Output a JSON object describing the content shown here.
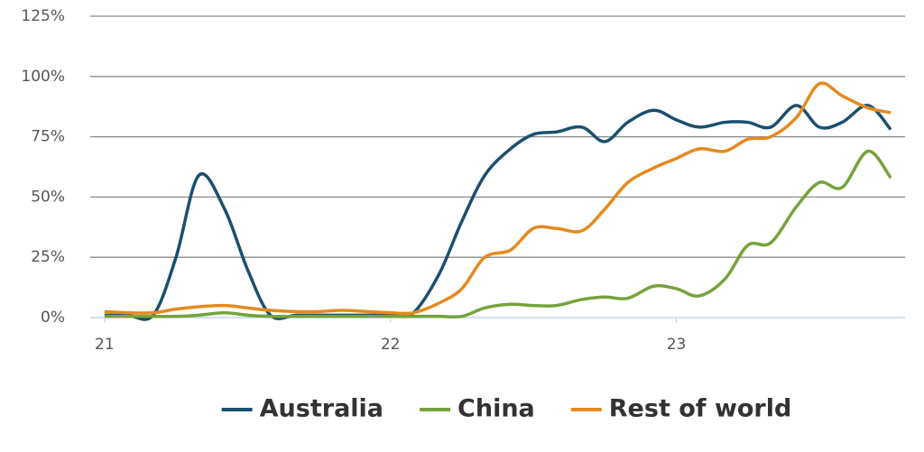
{
  "chart_data": {
    "type": "line",
    "x": [
      21,
      21.08,
      21.17,
      21.25,
      21.33,
      21.42,
      21.5,
      21.58,
      21.67,
      21.75,
      21.83,
      21.92,
      22,
      22.08,
      22.17,
      22.25,
      22.33,
      22.42,
      22.5,
      22.58,
      22.67,
      22.75,
      22.83,
      22.92,
      23,
      23.08,
      23.17,
      23.25,
      23.33,
      23.42,
      23.5,
      23.58,
      23.67,
      23.75
    ],
    "series": [
      {
        "name": "Australia",
        "color": "#1b4f6e",
        "values": [
          1,
          1,
          1,
          25,
          59,
          45,
          20,
          1,
          1,
          1,
          1,
          1,
          1,
          2,
          18,
          40,
          59,
          70,
          76,
          77,
          79,
          73,
          81,
          86,
          82,
          79,
          81,
          81,
          79,
          88,
          79,
          81,
          88,
          78
        ]
      },
      {
        "name": "China",
        "color": "#77a23c",
        "values": [
          0.5,
          0.5,
          0.5,
          0.5,
          1,
          2,
          1,
          0.5,
          0.5,
          0.5,
          0.5,
          0.5,
          0.5,
          0.5,
          0.5,
          0.5,
          4,
          5.5,
          5,
          5,
          7.5,
          8.5,
          8,
          13,
          12,
          9,
          16,
          30,
          31,
          46,
          56,
          54,
          69,
          58
        ]
      },
      {
        "name": "Rest of world",
        "color": "#e58a1f",
        "values": [
          2.5,
          2,
          2,
          3.5,
          4.5,
          5,
          4,
          3,
          2.5,
          2.5,
          3,
          2.5,
          2,
          2,
          6,
          12,
          25,
          28,
          37,
          37,
          36,
          45,
          56,
          62,
          66,
          70,
          69,
          74,
          75,
          83,
          97,
          92,
          87,
          85
        ]
      }
    ],
    "xlim": [
      20.95,
      23.8
    ],
    "xticks": [
      21,
      22,
      23
    ],
    "ylim": [
      0,
      125
    ],
    "yticks": [
      {
        "value": 0,
        "label": "0%"
      },
      {
        "value": 25,
        "label": "25%"
      },
      {
        "value": 50,
        "label": "50%"
      },
      {
        "value": 75,
        "label": "75%"
      },
      {
        "value": 100,
        "label": "100%"
      },
      {
        "value": 125,
        "label": "125%"
      }
    ],
    "grid": true,
    "legend": "bottom"
  }
}
